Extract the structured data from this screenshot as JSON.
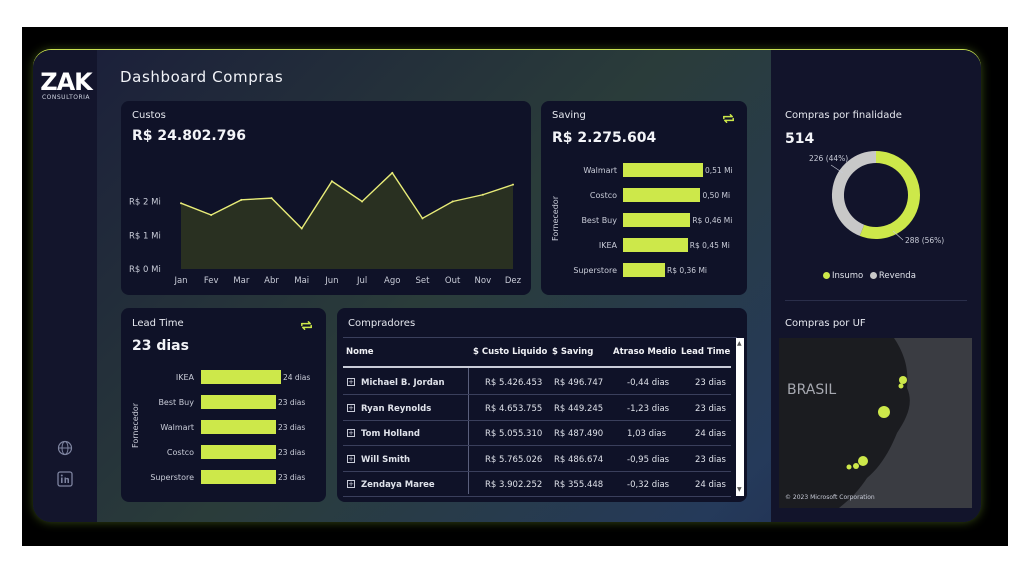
{
  "logo": {
    "main": "ZAK",
    "sub": "CONSULTORIA"
  },
  "title": "Dashboard Compras",
  "custos": {
    "title": "Custos",
    "value": "R$ 24.802.796",
    "chart_data": {
      "type": "area",
      "categories": [
        "Jan",
        "Fev",
        "Mar",
        "Abr",
        "Mai",
        "Jun",
        "Jul",
        "Ago",
        "Set",
        "Out",
        "Nov",
        "Dez"
      ],
      "values": [
        1.95,
        1.6,
        2.05,
        2.1,
        1.2,
        2.6,
        2.0,
        2.85,
        1.5,
        2.0,
        2.2,
        2.5
      ],
      "yticks": [
        "R$ 0 Mi",
        "R$ 1 Mi",
        "R$ 2 Mi"
      ],
      "ylim": [
        0,
        3.2
      ]
    }
  },
  "saving": {
    "title": "Saving",
    "value": "R$ 2.275.604",
    "axis_label": "Fornecedor",
    "chart_data": {
      "type": "bar",
      "categories": [
        "Walmart",
        "Costco",
        "Best Buy",
        "IKEA",
        "Superstore"
      ],
      "values": [
        0.51,
        0.5,
        0.46,
        0.45,
        0.36
      ],
      "labels": [
        "0,51 Mi",
        "0,50 Mi",
        "R$ 0,46 Mi",
        "R$ 0,45 Mi",
        "R$ 0,36 Mi"
      ]
    }
  },
  "finalidade": {
    "title": "Compras por finalidade",
    "value": "514",
    "chart_data": {
      "type": "pie",
      "categories": [
        "Insumo",
        "Revenda"
      ],
      "values": [
        288,
        226
      ],
      "labels": [
        "288 (56%)",
        "226 (44%)"
      ]
    },
    "legend": [
      "Insumo",
      "Revenda"
    ]
  },
  "leadtime": {
    "title": "Lead Time",
    "value": "23 dias",
    "axis_label": "Fornecedor",
    "chart_data": {
      "type": "bar",
      "categories": [
        "IKEA",
        "Best Buy",
        "Walmart",
        "Costco",
        "Superstore"
      ],
      "values": [
        24,
        23,
        23,
        23,
        23
      ],
      "labels": [
        "24 dias",
        "23 dias",
        "23 dias",
        "23 dias",
        "23 dias"
      ]
    }
  },
  "compradores": {
    "title": "Compradores",
    "columns": [
      "Nome",
      "$ Custo Liquido",
      "$ Saving",
      "Atraso Medio",
      "Lead Time"
    ],
    "rows": [
      [
        "Michael B. Jordan",
        "R$ 5.426.453",
        "R$ 496.747",
        "-0,44 dias",
        "23 dias"
      ],
      [
        "Ryan Reynolds",
        "R$ 4.653.755",
        "R$ 449.245",
        "-1,23 dias",
        "23 dias"
      ],
      [
        "Tom Holland",
        "R$ 5.055.310",
        "R$ 487.490",
        "1,03 dias",
        "24 dias"
      ],
      [
        "Will Smith",
        "R$ 5.765.026",
        "R$ 486.674",
        "-0,95 dias",
        "23 dias"
      ],
      [
        "Zendaya Maree",
        "R$ 3.902.252",
        "R$ 355.448",
        "-0,32 dias",
        "24 dias"
      ]
    ]
  },
  "uf": {
    "title": "Compras por UF",
    "map_label": "BRASIL",
    "attribution": "© 2023 Microsoft Corporation"
  },
  "colors": {
    "accent": "#cde84a",
    "gray": "#c8c8c8",
    "card": "#0f1228"
  }
}
